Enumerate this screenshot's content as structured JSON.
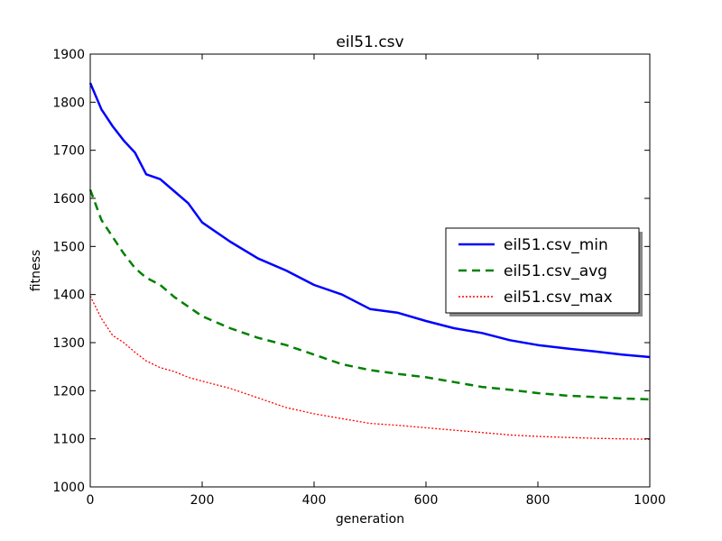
{
  "chart_data": {
    "type": "line",
    "title": "eil51.csv",
    "xlabel": "generation",
    "ylabel": "fitness",
    "xlim": [
      0,
      1000
    ],
    "ylim": [
      1000,
      1900
    ],
    "xticks": [
      "0",
      "200",
      "400",
      "600",
      "800",
      "1000"
    ],
    "yticks": [
      "1000",
      "1100",
      "1200",
      "1300",
      "1400",
      "1500",
      "1600",
      "1700",
      "1800",
      "1900"
    ],
    "grid": false,
    "legend_position": "center-right",
    "x": [
      0,
      20,
      40,
      60,
      80,
      100,
      125,
      150,
      175,
      200,
      250,
      300,
      350,
      400,
      450,
      500,
      550,
      600,
      650,
      700,
      750,
      800,
      850,
      900,
      950,
      1000
    ],
    "series": [
      {
        "name": "eil51.csv_min",
        "style": "solid",
        "color": "#0000ff",
        "values": [
          1840,
          1785,
          1750,
          1720,
          1695,
          1650,
          1640,
          1615,
          1590,
          1550,
          1510,
          1475,
          1450,
          1420,
          1400,
          1370,
          1362,
          1345,
          1330,
          1320,
          1305,
          1295,
          1288,
          1282,
          1275,
          1270
        ]
      },
      {
        "name": "eil51.csv_avg",
        "style": "dashed",
        "color": "#008000",
        "values": [
          1618,
          1555,
          1520,
          1485,
          1455,
          1435,
          1420,
          1395,
          1375,
          1355,
          1330,
          1310,
          1295,
          1275,
          1255,
          1243,
          1235,
          1228,
          1218,
          1208,
          1202,
          1195,
          1190,
          1187,
          1184,
          1182
        ]
      },
      {
        "name": "eil51.csv_max",
        "style": "dotted",
        "color": "#ff0000",
        "values": [
          1397,
          1350,
          1315,
          1300,
          1280,
          1262,
          1248,
          1240,
          1228,
          1220,
          1205,
          1185,
          1165,
          1152,
          1142,
          1132,
          1128,
          1123,
          1118,
          1113,
          1108,
          1105,
          1103,
          1101,
          1100,
          1099
        ]
      }
    ]
  }
}
